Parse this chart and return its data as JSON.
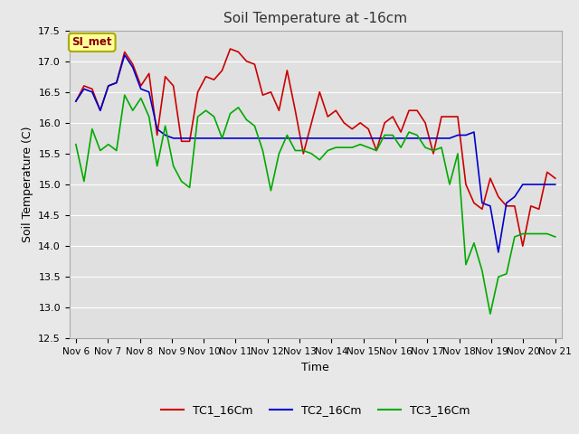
{
  "title": "Soil Temperature at -16cm",
  "xlabel": "Time",
  "ylabel": "Soil Temperature (C)",
  "ylim": [
    12.5,
    17.5
  ],
  "xtick_labels": [
    "Nov 6",
    "Nov 7",
    "Nov 8",
    "Nov 9",
    "Nov 10",
    "Nov 11",
    "Nov 12",
    "Nov 13",
    "Nov 14",
    "Nov 15",
    "Nov 16",
    "Nov 17",
    "Nov 18",
    "Nov 19",
    "Nov 20",
    "Nov 21"
  ],
  "annotation_text": "SI_met",
  "fig_bg_color": "#e8e8e8",
  "plot_bg_color": "#e0e0e0",
  "grid_color": "#ffffff",
  "TC1_color": "#cc0000",
  "TC2_color": "#0000cc",
  "TC3_color": "#00aa00",
  "TC1_16Cm": [
    16.35,
    16.6,
    16.55,
    16.2,
    16.6,
    16.65,
    17.15,
    16.95,
    16.6,
    16.8,
    15.8,
    16.75,
    16.6,
    15.7,
    15.7,
    16.5,
    16.75,
    16.7,
    16.85,
    17.2,
    17.15,
    17.0,
    16.95,
    16.45,
    16.5,
    16.2,
    16.85,
    16.2,
    15.5,
    16.0,
    16.5,
    16.1,
    16.2,
    16.0,
    15.9,
    16.0,
    15.9,
    15.55,
    16.0,
    16.1,
    15.85,
    16.2,
    16.2,
    16.0,
    15.5,
    16.1,
    16.1,
    16.1,
    15.0,
    14.7,
    14.6,
    15.1,
    14.8,
    14.65,
    14.65,
    14.0,
    14.65,
    14.6,
    15.2,
    15.1
  ],
  "TC2_16Cm": [
    16.35,
    16.55,
    16.5,
    16.2,
    16.6,
    16.65,
    17.1,
    16.9,
    16.55,
    16.5,
    15.9,
    15.8,
    15.75,
    15.75,
    15.75,
    15.75,
    15.75,
    15.75,
    15.75,
    15.75,
    15.75,
    15.75,
    15.75,
    15.75,
    15.75,
    15.75,
    15.75,
    15.75,
    15.75,
    15.75,
    15.75,
    15.75,
    15.75,
    15.75,
    15.75,
    15.75,
    15.75,
    15.75,
    15.75,
    15.75,
    15.75,
    15.75,
    15.75,
    15.75,
    15.75,
    15.75,
    15.75,
    15.8,
    15.8,
    15.85,
    14.7,
    14.65,
    13.9,
    14.7,
    14.8,
    15.0,
    15.0,
    15.0,
    15.0,
    15.0
  ],
  "TC3_16Cm": [
    15.65,
    15.05,
    15.9,
    15.55,
    15.65,
    15.55,
    16.45,
    16.2,
    16.4,
    16.1,
    15.3,
    15.95,
    15.3,
    15.05,
    14.95,
    16.1,
    16.2,
    16.1,
    15.75,
    16.15,
    16.25,
    16.05,
    15.95,
    15.55,
    14.9,
    15.5,
    15.8,
    15.55,
    15.55,
    15.5,
    15.4,
    15.55,
    15.6,
    15.6,
    15.6,
    15.65,
    15.6,
    15.55,
    15.8,
    15.8,
    15.6,
    15.85,
    15.8,
    15.6,
    15.55,
    15.6,
    15.0,
    15.5,
    13.7,
    14.05,
    13.6,
    12.9,
    13.5,
    13.55,
    14.15,
    14.2,
    14.2,
    14.2,
    14.2,
    14.15
  ]
}
